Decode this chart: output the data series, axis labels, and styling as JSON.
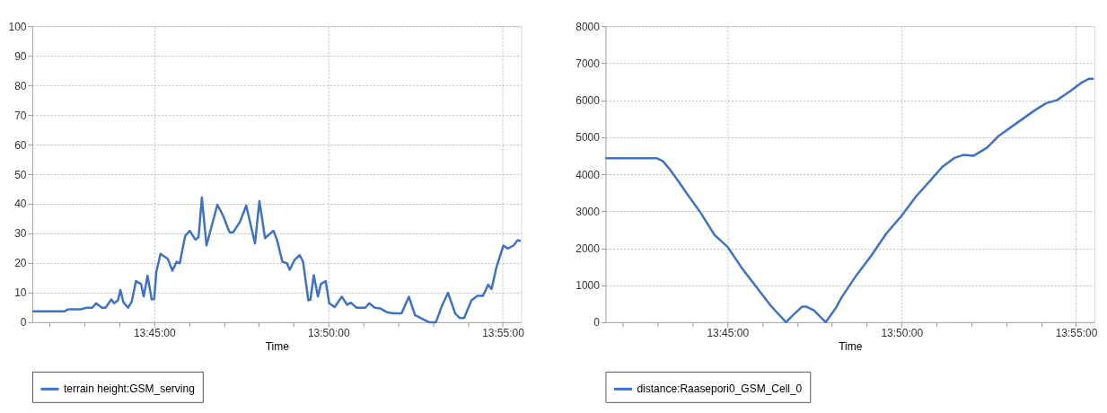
{
  "chart_data": [
    {
      "type": "line",
      "xlabel": "Time",
      "xlim": [
        13.6917,
        13.9255
      ],
      "ylim": [
        0,
        100
      ],
      "yticks": [
        0,
        10,
        20,
        30,
        40,
        50,
        60,
        70,
        80,
        90,
        100
      ],
      "xticks": [
        {
          "value": 13.7,
          "label": null
        },
        {
          "value": 13.7167,
          "label": null
        },
        {
          "value": 13.7333,
          "label": null
        },
        {
          "value": 13.75,
          "label": "13:45:00"
        },
        {
          "value": 13.7667,
          "label": null
        },
        {
          "value": 13.7833,
          "label": null
        },
        {
          "value": 13.8,
          "label": null
        },
        {
          "value": 13.8167,
          "label": null
        },
        {
          "value": 13.8333,
          "label": "13:50:00"
        },
        {
          "value": 13.85,
          "label": null
        },
        {
          "value": 13.8667,
          "label": null
        },
        {
          "value": 13.8833,
          "label": null
        },
        {
          "value": 13.9,
          "label": null
        },
        {
          "value": 13.9167,
          "label": "13:55:00"
        }
      ],
      "grid": true,
      "legend": "bottom",
      "line_style": "solid",
      "series": [
        {
          "name": "terrain height:GSM_serving",
          "color": "#3f72c4",
          "x": [
            13.6917,
            13.7072,
            13.709,
            13.715,
            13.7177,
            13.7204,
            13.7222,
            13.725,
            13.7267,
            13.7295,
            13.7308,
            13.7327,
            13.7338,
            13.7353,
            13.7375,
            13.7392,
            13.7413,
            13.7437,
            13.745,
            13.7468,
            13.7488,
            13.75,
            13.751,
            13.753,
            13.7565,
            13.7587,
            13.7607,
            13.7622,
            13.7648,
            13.767,
            13.7697,
            13.7712,
            13.7728,
            13.775,
            13.7802,
            13.783,
            13.786,
            13.7878,
            13.791,
            13.794,
            13.7982,
            13.8003,
            13.803,
            13.807,
            13.8087,
            13.8113,
            13.8135,
            13.8148,
            13.817,
            13.8195,
            13.8212,
            13.8237,
            13.8247,
            13.8263,
            13.8283,
            13.8297,
            13.832,
            13.8337,
            13.8363,
            13.8397,
            13.8423,
            13.844,
            13.8468,
            13.851,
            13.8528,
            13.8555,
            13.858,
            13.8613,
            13.8642,
            13.8683,
            13.8718,
            13.8747,
            13.8788,
            13.8815,
            13.8847,
            13.8878,
            13.8905,
            13.894,
            13.8962,
            13.8982,
            13.9017,
            13.9045,
            13.9072,
            13.9097,
            13.9113,
            13.9138,
            13.917,
            13.919,
            13.9218,
            13.9238,
            13.9253
          ],
          "values": [
            3.7,
            3.7,
            4.4,
            4.4,
            4.9,
            4.9,
            6.4,
            4.9,
            4.9,
            7.7,
            6.4,
            7.4,
            10.9,
            6.7,
            4.9,
            6.9,
            13.9,
            12.9,
            8.7,
            15.7,
            7.7,
            7.9,
            16.9,
            23.1,
            21.4,
            17.4,
            20.4,
            19.9,
            29.1,
            30.9,
            27.9,
            28.7,
            42.1,
            25.9,
            39.7,
            35.9,
            30.4,
            30.4,
            33.9,
            39.4,
            26.6,
            40.9,
            28.4,
            30.9,
            27.9,
            20.4,
            19.9,
            17.7,
            20.9,
            22.7,
            20.4,
            7.4,
            7.6,
            15.9,
            8.7,
            12.9,
            13.9,
            6.4,
            5.1,
            8.6,
            5.9,
            6.6,
            4.9,
            4.9,
            6.4,
            4.9,
            4.7,
            3.4,
            3.0,
            3.0,
            8.6,
            2.4,
            0.9,
            0,
            0,
            5.9,
            9.9,
            2.9,
            1.4,
            1.4,
            7.4,
            8.9,
            8.9,
            12.7,
            11.2,
            18.9,
            25.9,
            24.9,
            25.9,
            27.7,
            27.4
          ]
        }
      ]
    },
    {
      "type": "line",
      "xlabel": "Time",
      "xlim": [
        13.6917,
        13.9255
      ],
      "ylim": [
        0,
        8000
      ],
      "yticks": [
        0,
        1000,
        2000,
        3000,
        4000,
        5000,
        6000,
        7000,
        8000
      ],
      "xticks": [
        {
          "value": 13.7,
          "label": null
        },
        {
          "value": 13.7167,
          "label": null
        },
        {
          "value": 13.7333,
          "label": null
        },
        {
          "value": 13.75,
          "label": "13:45:00"
        },
        {
          "value": 13.7667,
          "label": null
        },
        {
          "value": 13.7833,
          "label": null
        },
        {
          "value": 13.8,
          "label": null
        },
        {
          "value": 13.8167,
          "label": null
        },
        {
          "value": 13.8333,
          "label": "13:50:00"
        },
        {
          "value": 13.85,
          "label": null
        },
        {
          "value": 13.8667,
          "label": null
        },
        {
          "value": 13.8833,
          "label": null
        },
        {
          "value": 13.9,
          "label": null
        },
        {
          "value": 13.9167,
          "label": "13:55:00"
        }
      ],
      "grid": true,
      "legend": "bottom",
      "line_style": "solid",
      "series": [
        {
          "name": "distance:Raasepori0_GSM_Cell_0",
          "color": "#3f72c4",
          "x": [
            13.6917,
            13.7163,
            13.7192,
            13.7227,
            13.7268,
            13.7318,
            13.7368,
            13.7438,
            13.75,
            13.7567,
            13.7637,
            13.7708,
            13.778,
            13.7815,
            13.7857,
            13.7878,
            13.7913,
            13.797,
            13.802,
            13.8047,
            13.8118,
            13.8188,
            13.826,
            13.8333,
            13.8402,
            13.8472,
            13.8528,
            13.8585,
            13.8628,
            13.8678,
            13.8742,
            13.8798,
            13.8868,
            13.8968,
            13.9025,
            13.9075,
            13.9138,
            13.9195,
            13.923,
            13.9252
          ],
          "values": [
            4430,
            4430,
            4350,
            4110,
            3790,
            3380,
            2990,
            2360,
            2040,
            1480,
            960,
            440,
            0,
            200,
            420,
            420,
            320,
            0,
            400,
            680,
            1280,
            1800,
            2400,
            2880,
            3400,
            3840,
            4200,
            4440,
            4520,
            4500,
            4720,
            5040,
            5320,
            5720,
            5920,
            6000,
            6240,
            6480,
            6580,
            6580
          ]
        }
      ]
    }
  ]
}
